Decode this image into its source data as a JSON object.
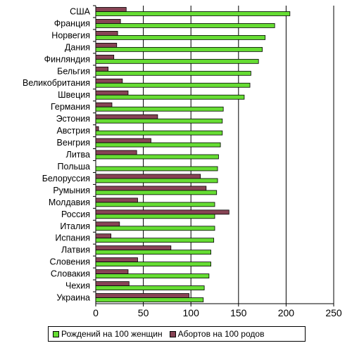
{
  "chart_data": {
    "type": "bar",
    "orientation": "horizontal",
    "categories": [
      "США",
      "Франция",
      "Норвегия",
      "Дания",
      "Финляндия",
      "Бельгия",
      "Великобритания",
      "Швеция",
      "Германия",
      "Эстония",
      "Австрия",
      "Венгрия",
      "Литва",
      "Польша",
      "Белоруссия",
      "Румыния",
      "Молдавия",
      "Россия",
      "Италия",
      "Испания",
      "Латвия",
      "Словения",
      "Словакия",
      "Чехия",
      "Украина"
    ],
    "series": [
      {
        "name": "Рождений на 100 женщин",
        "color": "#66dd33",
        "values": [
          204,
          188,
          178,
          175,
          171,
          163,
          162,
          156,
          134,
          133,
          133,
          131,
          129,
          128,
          128,
          127,
          125,
          125,
          125,
          124,
          121,
          121,
          119,
          114,
          113
        ]
      },
      {
        "name": "Абортов на 100 родов",
        "color": "#884455",
        "values": [
          32,
          26,
          23,
          22,
          19,
          13,
          28,
          34,
          17,
          65,
          3,
          58,
          43,
          0,
          110,
          116,
          44,
          140,
          25,
          16,
          79,
          44,
          34,
          35,
          98
        ]
      }
    ],
    "xlim": [
      0,
      250
    ],
    "xticks": [
      "0",
      "50",
      "100",
      "150",
      "200",
      "250"
    ],
    "xlabel": "",
    "ylabel": "",
    "title": "",
    "grid": "vertical",
    "legend_position": "bottom"
  }
}
